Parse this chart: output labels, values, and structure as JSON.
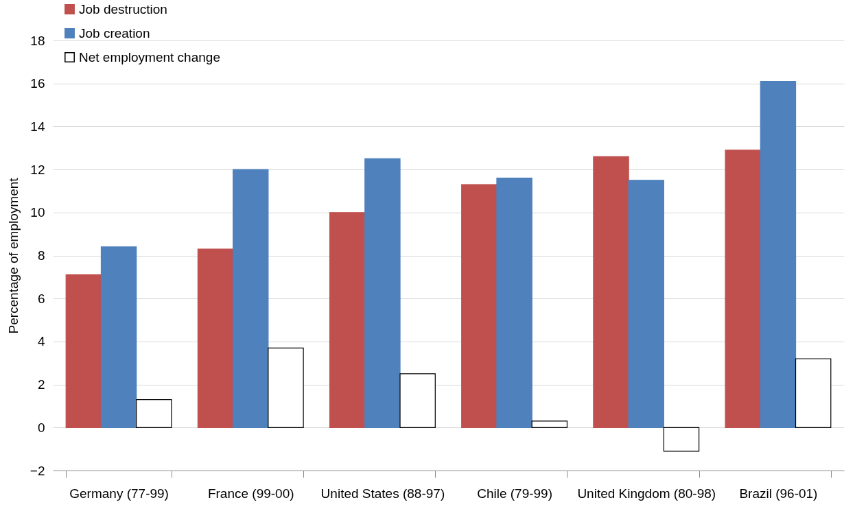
{
  "chart_data": {
    "type": "bar",
    "ylabel": "Percentage of employment",
    "categories": [
      "Germany (77-99)",
      "France (99-00)",
      "United States (88-97)",
      "Chile (79-99)",
      "United Kingdom (80-98)",
      "Brazil (96-01)"
    ],
    "series": [
      {
        "name": "Job destruction",
        "color": "#c0504d",
        "values": [
          7.1,
          8.3,
          10.0,
          11.3,
          12.6,
          12.9
        ]
      },
      {
        "name": "Job creation",
        "color": "#4f81bd",
        "values": [
          8.4,
          12.0,
          12.5,
          11.6,
          11.5,
          16.1
        ]
      },
      {
        "name": "Net employment change",
        "color": "#ffffff",
        "values": [
          1.3,
          3.7,
          2.5,
          0.3,
          -1.1,
          3.2
        ]
      }
    ],
    "ylim": [
      -2,
      18
    ],
    "yticks": [
      -2,
      0,
      2,
      4,
      6,
      8,
      10,
      12,
      14,
      16,
      18
    ],
    "grid": "y",
    "legend": "top left"
  }
}
